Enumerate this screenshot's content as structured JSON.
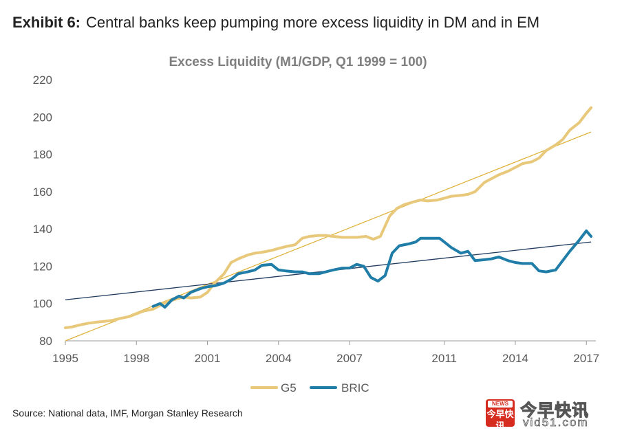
{
  "header": {
    "exhibit_label": "Exhibit 6:",
    "title": "Central banks keep pumping more excess liquidity in DM and in EM"
  },
  "chart_data": {
    "type": "line",
    "title": "Excess Liquidity (M1/GDP, Q1 1999 = 100)",
    "xlabel": "",
    "ylabel": "",
    "xlim": [
      1995,
      2017.4
    ],
    "ylim": [
      80,
      220
    ],
    "x_ticks": [
      1995,
      1998,
      2001,
      2004,
      2007,
      2011,
      2014,
      2017
    ],
    "y_ticks": [
      80,
      100,
      120,
      140,
      160,
      180,
      200,
      220
    ],
    "grid": false,
    "legend_position": "bottom-center",
    "series": [
      {
        "name": "G5",
        "color": "#e8c87a",
        "x": [
          1995.0,
          1995.3,
          1995.6,
          1996.0,
          1996.3,
          1996.7,
          1997.0,
          1997.3,
          1997.7,
          1998.0,
          1998.3,
          1998.7,
          1999.0,
          1999.3,
          1999.7,
          2000.0,
          2000.3,
          2000.7,
          2001.0,
          2001.3,
          2001.7,
          2002.0,
          2002.3,
          2002.7,
          2003.0,
          2003.3,
          2003.7,
          2004.0,
          2004.3,
          2004.7,
          2005.0,
          2005.3,
          2005.7,
          2006.0,
          2006.3,
          2006.7,
          2007.0,
          2007.3,
          2007.7,
          2008.0,
          2008.3,
          2008.7,
          2009.0,
          2009.3,
          2009.7,
          2010.0,
          2010.3,
          2010.7,
          2011.0,
          2011.3,
          2011.7,
          2012.0,
          2012.3,
          2012.7,
          2013.0,
          2013.3,
          2013.7,
          2014.0,
          2014.3,
          2014.7,
          2015.0,
          2015.3,
          2015.7,
          2016.0,
          2016.3,
          2016.7,
          2017.0,
          2017.2
        ],
        "values": [
          87,
          87.5,
          88.5,
          89.5,
          90,
          90.5,
          91,
          92,
          93,
          94.5,
          96,
          97,
          99,
          101,
          102.5,
          103.5,
          103,
          103.5,
          106,
          111,
          116,
          122,
          124,
          126,
          127,
          127.5,
          128.5,
          129.5,
          130.5,
          131.5,
          135,
          136,
          136.5,
          136.5,
          136,
          135.5,
          135.5,
          135.5,
          136,
          134.5,
          136,
          147,
          151,
          153,
          154.5,
          155.5,
          155,
          155.5,
          156.5,
          157.5,
          158,
          158.5,
          160,
          165,
          167,
          169,
          171,
          173,
          175,
          176,
          178,
          182,
          185,
          188,
          193,
          197,
          202,
          205
        ]
      },
      {
        "name": "BRIC",
        "color": "#1f7da8",
        "x": [
          1998.7,
          1999.0,
          1999.2,
          1999.5,
          1999.8,
          2000.0,
          2000.3,
          2000.7,
          2001.0,
          2001.3,
          2001.7,
          2002.0,
          2002.3,
          2002.7,
          2003.0,
          2003.3,
          2003.7,
          2004.0,
          2004.3,
          2004.7,
          2005.0,
          2005.3,
          2005.7,
          2006.0,
          2006.3,
          2006.7,
          2007.0,
          2007.3,
          2007.6,
          2007.9,
          2008.2,
          2008.5,
          2008.8,
          2009.1,
          2009.5,
          2009.8,
          2010.0,
          2010.4,
          2010.8,
          2011.0,
          2011.3,
          2011.7,
          2012.0,
          2012.3,
          2012.7,
          2013.0,
          2013.3,
          2013.7,
          2014.0,
          2014.3,
          2014.7,
          2015.0,
          2015.3,
          2015.7,
          2016.0,
          2016.3,
          2016.7,
          2017.0,
          2017.2
        ],
        "values": [
          98.5,
          100,
          98,
          102,
          104,
          103,
          106,
          108,
          109,
          109.5,
          111,
          113,
          116,
          117,
          118,
          120.5,
          121,
          118,
          117.5,
          117,
          117,
          116,
          116,
          117,
          118,
          119,
          119,
          121,
          120,
          114,
          112,
          115,
          127,
          131,
          132,
          133,
          135,
          135,
          135,
          133,
          130,
          127,
          128,
          123,
          123.5,
          124,
          125,
          123,
          122,
          121.5,
          121.5,
          117.5,
          117,
          118,
          123,
          128,
          134,
          139,
          136
        ]
      }
    ],
    "trend_lines": [
      {
        "name": "G5 trend",
        "color": "#e0b33e",
        "x": [
          1995.0,
          2017.2
        ],
        "values": [
          80,
          192
        ]
      },
      {
        "name": "BRIC trend",
        "color": "#1f3a5f",
        "x": [
          1995.0,
          2017.2
        ],
        "values": [
          102,
          133
        ]
      }
    ]
  },
  "legend": {
    "items": [
      {
        "label": "G5",
        "color": "#e8c87a"
      },
      {
        "label": "BRIC",
        "color": "#1f7da8"
      }
    ]
  },
  "footer": {
    "source": "Source: National data, IMF, Morgan Stanley Research"
  },
  "watermark": {
    "badge_top": "NEWS",
    "badge_text": "今早快讯",
    "brand": "今早快讯",
    "site": "vid51.com"
  }
}
